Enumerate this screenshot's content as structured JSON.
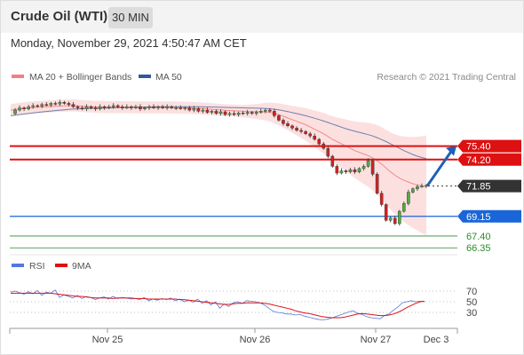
{
  "header": {
    "title": "Crude Oil (WTI)",
    "timeframe": "30 MIN",
    "datetime": "Monday, November 29, 2021 4:50:47 AM CET"
  },
  "colors": {
    "candle_up": "#55aa44",
    "candle_down": "#cc2222",
    "ma20": "#f08080",
    "ma50": "#4a66a0",
    "band_fill": "#fbd5d5",
    "resistance": "#dd1111",
    "support_blue": "#1a66d8",
    "support_green": "#2a8a2a",
    "rsi": "#5577dd",
    "rsi_ma": "#dd1111",
    "arrow": "#1f5fb8"
  },
  "chart_data": [
    {
      "type": "line",
      "title": "",
      "subtitle": "Research © 2021 Trading Central",
      "legend": [
        {
          "name": "MA 20 + Bollinger Bands",
          "color": "#f08080"
        },
        {
          "name": "MA 50",
          "color": "#2f5a9a"
        }
      ],
      "legend_placement": "top-left",
      "x_labels": [
        "Nov 25",
        "Nov 26",
        "Nov 27",
        "Dec 3"
      ],
      "y_range": [
        65.5,
        80.5
      ],
      "price_levels": [
        {
          "label": "75.40",
          "value": 75.4,
          "kind": "resistance"
        },
        {
          "label": "74.20",
          "value": 74.2,
          "kind": "resistance"
        },
        {
          "label": "71.85",
          "value": 71.85,
          "kind": "current"
        },
        {
          "label": "69.15",
          "value": 69.15,
          "kind": "support"
        },
        {
          "label": "67.40",
          "value": 67.4,
          "kind": "support"
        },
        {
          "label": "66.35",
          "value": 66.35,
          "kind": "support"
        }
      ],
      "forecast_arrow": {
        "from": 71.85,
        "to": 75.4
      },
      "series": [
        {
          "name": "Price",
          "values": [
            78.3,
            78.6,
            78.8,
            78.7,
            78.9,
            79.0,
            78.95,
            79.1,
            79.05,
            79.2,
            79.15,
            79.3,
            79.2,
            79.1,
            78.9,
            78.8,
            78.7,
            78.9,
            78.8,
            78.7,
            78.9,
            78.8,
            78.9,
            79.0,
            78.9,
            78.8,
            78.9,
            78.8,
            78.9,
            78.7,
            78.8,
            78.9,
            78.8,
            78.9,
            78.8,
            78.9,
            78.8,
            78.8,
            78.75,
            78.8,
            78.6,
            78.75,
            78.5,
            78.6,
            78.4,
            78.5,
            78.3,
            78.45,
            78.2,
            78.3,
            78.2,
            78.35,
            78.3,
            78.4,
            78.3,
            78.4,
            78.5,
            78.6,
            78.5,
            78.1,
            77.7,
            77.4,
            77.2,
            77.0,
            76.8,
            76.7,
            76.5,
            76.3,
            76.0,
            75.6,
            75.2,
            74.5,
            73.6,
            73.0,
            73.2,
            73.1,
            73.3,
            73.1,
            73.4,
            73.6,
            74.1,
            72.9,
            71.2,
            70.2,
            68.8,
            69.0,
            68.5,
            69.6,
            70.3,
            71.3,
            71.6,
            71.8,
            71.85,
            71.9
          ]
        },
        {
          "name": "MA 20",
          "values": [
            78.6,
            78.65,
            78.7,
            78.75,
            78.8,
            78.82,
            78.85,
            78.88,
            78.9,
            78.92,
            78.95,
            78.97,
            78.98,
            79.0,
            79.0,
            78.98,
            78.95,
            78.92,
            78.9,
            78.88,
            78.87,
            78.86,
            78.85,
            78.85,
            78.85,
            78.85,
            78.85,
            78.84,
            78.84,
            78.84,
            78.83,
            78.83,
            78.83,
            78.83,
            78.82,
            78.82,
            78.82,
            78.81,
            78.81,
            78.8,
            78.79,
            78.77,
            78.75,
            78.73,
            78.7,
            78.67,
            78.64,
            78.61,
            78.58,
            78.56,
            78.54,
            78.52,
            78.5,
            78.48,
            78.47,
            78.46,
            78.45,
            78.44,
            78.4,
            78.3,
            78.2,
            78.05,
            77.9,
            77.75,
            77.6,
            77.45,
            77.3,
            77.1,
            76.9,
            76.7,
            76.5,
            76.25,
            76.0,
            75.8,
            75.6,
            75.4,
            75.2,
            75.0,
            74.85,
            74.7,
            74.55,
            74.35,
            74.1,
            73.8,
            73.45,
            73.1,
            72.8,
            72.55,
            72.35,
            72.2,
            72.05,
            71.95,
            71.85,
            71.8
          ]
        },
        {
          "name": "MA 50",
          "values": [
            78.1,
            78.15,
            78.2,
            78.25,
            78.3,
            78.35,
            78.4,
            78.44,
            78.48,
            78.52,
            78.56,
            78.6,
            78.63,
            78.66,
            78.69,
            78.71,
            78.73,
            78.74,
            78.75,
            78.76,
            78.77,
            78.78,
            78.79,
            78.8,
            78.81,
            78.82,
            78.83,
            78.84,
            78.85,
            78.86,
            78.87,
            78.88,
            78.89,
            78.9,
            78.9,
            78.9,
            78.9,
            78.9,
            78.9,
            78.9,
            78.9,
            78.9,
            78.9,
            78.89,
            78.88,
            78.87,
            78.86,
            78.85,
            78.84,
            78.83,
            78.82,
            78.81,
            78.8,
            78.79,
            78.78,
            78.77,
            78.76,
            78.74,
            78.72,
            78.68,
            78.62,
            78.55,
            78.47,
            78.38,
            78.29,
            78.2,
            78.1,
            77.99,
            77.88,
            77.76,
            77.63,
            77.5,
            77.36,
            77.22,
            77.08,
            76.95,
            76.83,
            76.72,
            76.62,
            76.52,
            76.42,
            76.3,
            76.15,
            75.98,
            75.8,
            75.6,
            75.4,
            75.2,
            75.0,
            74.82,
            74.65,
            74.5,
            74.38,
            74.28
          ]
        }
      ]
    },
    {
      "type": "line",
      "title": "",
      "legend": [
        {
          "name": "RSI",
          "color": "#5577dd"
        },
        {
          "name": "9MA",
          "color": "#dd1111"
        }
      ],
      "legend_placement": "top-left",
      "y_ticks": [
        "70",
        "50",
        "30"
      ],
      "y_range": [
        0,
        100
      ],
      "series": [
        {
          "name": "RSI",
          "values": [
            68,
            70,
            67,
            64,
            69,
            65,
            71,
            62,
            68,
            66,
            72,
            58,
            63,
            60,
            57,
            62,
            56,
            60,
            58,
            54,
            57,
            59,
            55,
            60,
            56,
            58,
            57,
            55,
            56,
            54,
            58,
            52,
            55,
            53,
            56,
            54,
            57,
            52,
            55,
            50,
            53,
            49,
            55,
            47,
            52,
            44,
            50,
            38,
            46,
            41,
            48,
            50,
            47,
            52,
            51,
            50,
            48,
            44,
            38,
            32,
            30,
            29,
            27,
            27,
            25,
            26,
            23,
            21,
            19,
            17,
            16,
            17,
            19,
            22,
            25,
            28,
            31,
            33,
            28,
            26,
            22,
            20,
            19,
            18,
            24,
            27,
            34,
            40,
            48,
            50,
            52,
            50,
            51,
            50
          ]
        },
        {
          "name": "9MA",
          "values": [
            66,
            66,
            66,
            66,
            66,
            66,
            66,
            66,
            66,
            66,
            65,
            64,
            63,
            62,
            61,
            60,
            60,
            59,
            58,
            57,
            57,
            57,
            57,
            56,
            57,
            57,
            57,
            57,
            56,
            56,
            56,
            55,
            55,
            55,
            55,
            55,
            55,
            55,
            54,
            54,
            53,
            52,
            51,
            50,
            49,
            48,
            47,
            46,
            45,
            45,
            46,
            47,
            47,
            48,
            48,
            48,
            48,
            47,
            46,
            44,
            42,
            40,
            38,
            36,
            33,
            31,
            29,
            28,
            26,
            24,
            22,
            21,
            20,
            20,
            20,
            21,
            23,
            25,
            27,
            28,
            27,
            26,
            25,
            24,
            24,
            25,
            27,
            30,
            34,
            39,
            43,
            47,
            50,
            51
          ]
        }
      ]
    }
  ]
}
